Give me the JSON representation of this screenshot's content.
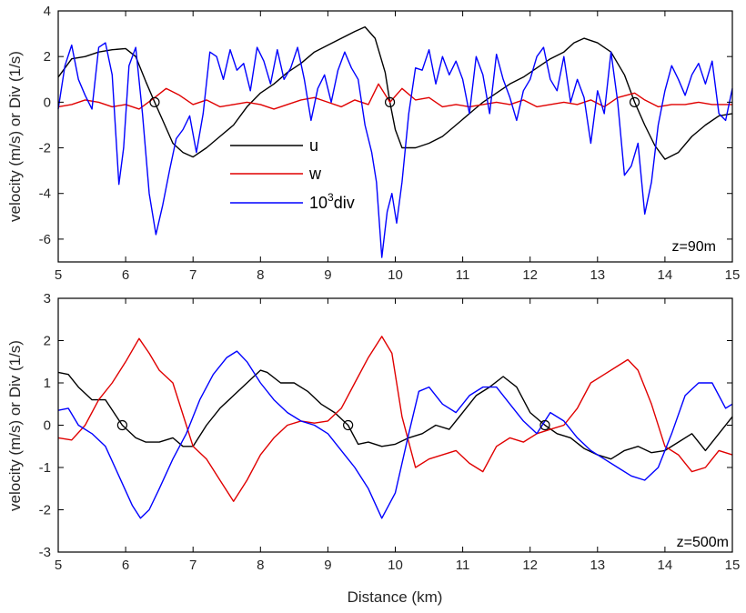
{
  "chart_data": [
    {
      "type": "line",
      "annotation": "z=90m",
      "xlabel": "",
      "ylabel": "velocity (m/s) or Div (1/s)",
      "xlim": [
        5,
        15
      ],
      "ylim": [
        -7,
        4
      ],
      "xticks": [
        5,
        6,
        7,
        8,
        9,
        10,
        11,
        12,
        13,
        14,
        15
      ],
      "yticks": [
        -6,
        -4,
        -2,
        0,
        2,
        4
      ],
      "legend": {
        "placement": "center-left",
        "entries": [
          {
            "label": "u",
            "color": "#000000"
          },
          {
            "label": "w",
            "color": "#e00000"
          },
          {
            "label_base": "10",
            "label_sup": "3",
            "label_rest": "div",
            "color": "#0000ff"
          }
        ]
      },
      "markers": [
        [
          6.43,
          0
        ],
        [
          9.92,
          0
        ],
        [
          13.55,
          0
        ]
      ],
      "series": [
        {
          "color": "#000000",
          "x": [
            5,
            5.2,
            5.4,
            5.6,
            5.8,
            6,
            6.15,
            6.3,
            6.43,
            6.55,
            6.7,
            6.85,
            7,
            7.2,
            7.4,
            7.6,
            7.8,
            8,
            8.2,
            8.4,
            8.6,
            8.8,
            9,
            9.2,
            9.4,
            9.55,
            9.7,
            9.85,
            9.92,
            10,
            10.1,
            10.3,
            10.5,
            10.7,
            10.9,
            11.1,
            11.3,
            11.5,
            11.7,
            11.9,
            12.1,
            12.3,
            12.5,
            12.65,
            12.8,
            13,
            13.2,
            13.4,
            13.55,
            13.7,
            13.85,
            14,
            14.2,
            14.4,
            14.6,
            14.8,
            15
          ],
          "y": [
            1.1,
            1.9,
            2.0,
            2.2,
            2.3,
            2.35,
            2.0,
            0.9,
            0.0,
            -0.8,
            -1.8,
            -2.2,
            -2.4,
            -2.0,
            -1.5,
            -1.0,
            -0.2,
            0.4,
            0.8,
            1.3,
            1.7,
            2.2,
            2.5,
            2.8,
            3.1,
            3.3,
            2.8,
            1.3,
            0.0,
            -1.2,
            -2.0,
            -2.0,
            -1.8,
            -1.5,
            -1.0,
            -0.5,
            0.0,
            0.4,
            0.8,
            1.1,
            1.5,
            1.9,
            2.2,
            2.6,
            2.8,
            2.6,
            2.2,
            1.2,
            0.0,
            -1.0,
            -1.9,
            -2.5,
            -2.2,
            -1.5,
            -1.0,
            -0.6,
            -0.5
          ]
        },
        {
          "color": "#e00000",
          "x": [
            5,
            5.2,
            5.4,
            5.6,
            5.8,
            6,
            6.2,
            6.43,
            6.6,
            6.8,
            7,
            7.2,
            7.4,
            7.6,
            7.8,
            8,
            8.2,
            8.4,
            8.6,
            8.8,
            9,
            9.2,
            9.4,
            9.6,
            9.75,
            9.92,
            10.1,
            10.3,
            10.5,
            10.7,
            10.9,
            11.1,
            11.3,
            11.5,
            11.7,
            11.9,
            12.1,
            12.3,
            12.5,
            12.7,
            12.9,
            13.1,
            13.3,
            13.55,
            13.7,
            13.9,
            14.1,
            14.3,
            14.5,
            14.7,
            14.9,
            15
          ],
          "y": [
            -0.2,
            -0.1,
            0.1,
            0.0,
            -0.2,
            -0.1,
            -0.3,
            0.2,
            0.6,
            0.3,
            -0.1,
            0.1,
            -0.2,
            -0.1,
            0.0,
            -0.1,
            -0.3,
            -0.1,
            0.1,
            0.2,
            0.0,
            -0.2,
            0.1,
            -0.1,
            0.8,
            0.0,
            0.6,
            0.1,
            0.2,
            -0.2,
            -0.1,
            -0.2,
            -0.1,
            0.0,
            -0.1,
            0.1,
            -0.2,
            -0.1,
            0.0,
            -0.1,
            0.1,
            -0.2,
            0.2,
            0.4,
            0.1,
            -0.2,
            -0.1,
            -0.1,
            0.0,
            -0.1,
            -0.1,
            -0.1
          ]
        },
        {
          "color": "#0000ff",
          "x": [
            5,
            5.1,
            5.2,
            5.3,
            5.4,
            5.5,
            5.6,
            5.7,
            5.8,
            5.9,
            5.97,
            6.05,
            6.15,
            6.25,
            6.35,
            6.45,
            6.55,
            6.65,
            6.75,
            6.85,
            6.95,
            7.05,
            7.15,
            7.25,
            7.35,
            7.45,
            7.55,
            7.65,
            7.75,
            7.85,
            7.95,
            8.05,
            8.15,
            8.25,
            8.35,
            8.45,
            8.55,
            8.65,
            8.75,
            8.85,
            8.95,
            9.05,
            9.15,
            9.25,
            9.35,
            9.45,
            9.55,
            9.65,
            9.72,
            9.8,
            9.88,
            9.95,
            10.02,
            10.1,
            10.2,
            10.3,
            10.4,
            10.5,
            10.6,
            10.7,
            10.8,
            10.9,
            11.0,
            11.1,
            11.2,
            11.3,
            11.4,
            11.5,
            11.6,
            11.7,
            11.8,
            11.9,
            12.0,
            12.1,
            12.2,
            12.3,
            12.4,
            12.5,
            12.6,
            12.7,
            12.8,
            12.9,
            13.0,
            13.1,
            13.2,
            13.3,
            13.4,
            13.5,
            13.6,
            13.7,
            13.8,
            13.9,
            14.0,
            14.1,
            14.2,
            14.3,
            14.4,
            14.5,
            14.6,
            14.7,
            14.8,
            14.9,
            15.0
          ],
          "y": [
            -0.3,
            1.6,
            2.5,
            1.0,
            0.3,
            -0.3,
            2.4,
            2.6,
            1.2,
            -3.6,
            -2.0,
            1.6,
            2.4,
            -0.5,
            -4.0,
            -5.8,
            -4.5,
            -3.0,
            -1.6,
            -1.2,
            -0.6,
            -2.2,
            -0.5,
            2.2,
            2.0,
            1.0,
            2.3,
            1.4,
            1.7,
            0.5,
            2.4,
            1.8,
            0.8,
            2.3,
            1.0,
            1.5,
            2.4,
            1.0,
            -0.8,
            0.6,
            1.2,
            0.0,
            1.4,
            2.2,
            1.5,
            1.0,
            -1.0,
            -2.2,
            -3.5,
            -6.8,
            -4.8,
            -4.0,
            -5.3,
            -3.5,
            -0.5,
            1.5,
            1.4,
            2.3,
            0.8,
            2.0,
            1.2,
            1.8,
            1.0,
            -0.5,
            2.0,
            1.2,
            -0.5,
            2.1,
            1.0,
            0.2,
            -0.8,
            0.5,
            1.0,
            2.0,
            2.4,
            1.0,
            0.5,
            2.0,
            0.0,
            1.0,
            0.2,
            -1.8,
            0.5,
            -0.5,
            2.2,
            0.0,
            -3.2,
            -2.8,
            -1.8,
            -4.9,
            -3.5,
            -1.0,
            0.5,
            1.6,
            1.0,
            0.3,
            1.2,
            1.7,
            0.8,
            1.8,
            -0.5,
            -0.8,
            0.6
          ]
        }
      ]
    },
    {
      "type": "line",
      "annotation": "z=500m",
      "xlabel": "Distance (km)",
      "ylabel": "velocity (m/s) or Div (1/s)",
      "xlim": [
        5,
        15
      ],
      "ylim": [
        -3,
        3
      ],
      "xticks": [
        5,
        6,
        7,
        8,
        9,
        10,
        11,
        12,
        13,
        14,
        15
      ],
      "yticks": [
        -3,
        -2,
        -1,
        0,
        1,
        2,
        3
      ],
      "markers": [
        [
          5.95,
          0
        ],
        [
          9.3,
          0
        ],
        [
          12.22,
          0
        ]
      ],
      "series": [
        {
          "color": "#000000",
          "x": [
            5,
            5.15,
            5.3,
            5.5,
            5.7,
            5.95,
            6.15,
            6.3,
            6.5,
            6.7,
            6.85,
            7.0,
            7.2,
            7.4,
            7.6,
            7.8,
            8.0,
            8.1,
            8.3,
            8.5,
            8.7,
            8.9,
            9.1,
            9.3,
            9.45,
            9.6,
            9.8,
            10.0,
            10.2,
            10.4,
            10.6,
            10.8,
            11.0,
            11.2,
            11.4,
            11.6,
            11.8,
            12.0,
            12.22,
            12.4,
            12.6,
            12.8,
            13.0,
            13.2,
            13.4,
            13.6,
            13.8,
            14.0,
            14.2,
            14.4,
            14.6,
            14.8,
            15.0
          ],
          "y": [
            1.25,
            1.2,
            0.9,
            0.6,
            0.6,
            0.0,
            -0.3,
            -0.4,
            -0.4,
            -0.3,
            -0.5,
            -0.5,
            0.0,
            0.4,
            0.7,
            1.0,
            1.3,
            1.25,
            1.0,
            1.0,
            0.8,
            0.5,
            0.3,
            0.0,
            -0.45,
            -0.4,
            -0.5,
            -0.45,
            -0.3,
            -0.2,
            0.0,
            -0.1,
            0.3,
            0.7,
            0.9,
            1.15,
            0.9,
            0.3,
            0.0,
            -0.2,
            -0.3,
            -0.55,
            -0.7,
            -0.8,
            -0.6,
            -0.5,
            -0.65,
            -0.6,
            -0.4,
            -0.2,
            -0.6,
            -0.2,
            0.2
          ]
        },
        {
          "color": "#e00000",
          "x": [
            5,
            5.2,
            5.4,
            5.6,
            5.8,
            6.0,
            6.2,
            6.35,
            6.5,
            6.7,
            6.9,
            7.0,
            7.2,
            7.4,
            7.6,
            7.8,
            8.0,
            8.2,
            8.4,
            8.6,
            8.8,
            9.0,
            9.2,
            9.4,
            9.6,
            9.8,
            9.95,
            10.1,
            10.3,
            10.5,
            10.7,
            10.9,
            11.1,
            11.3,
            11.5,
            11.7,
            11.9,
            12.1,
            12.3,
            12.5,
            12.7,
            12.9,
            13.1,
            13.3,
            13.45,
            13.6,
            13.8,
            14.0,
            14.2,
            14.4,
            14.6,
            14.8,
            15.0
          ],
          "y": [
            -0.3,
            -0.35,
            0.0,
            0.6,
            1.0,
            1.5,
            2.05,
            1.7,
            1.3,
            1.0,
            0.0,
            -0.5,
            -0.8,
            -1.3,
            -1.8,
            -1.3,
            -0.7,
            -0.3,
            0.0,
            0.1,
            0.05,
            0.1,
            0.4,
            1.0,
            1.6,
            2.1,
            1.7,
            0.2,
            -1.0,
            -0.8,
            -0.7,
            -0.6,
            -0.9,
            -1.1,
            -0.5,
            -0.3,
            -0.4,
            -0.2,
            -0.1,
            0.0,
            0.4,
            1.0,
            1.2,
            1.4,
            1.55,
            1.3,
            0.5,
            -0.5,
            -0.7,
            -1.1,
            -1.0,
            -0.6,
            -0.7
          ]
        },
        {
          "color": "#0000ff",
          "x": [
            5,
            5.15,
            5.3,
            5.5,
            5.7,
            5.9,
            6.1,
            6.22,
            6.35,
            6.5,
            6.7,
            6.9,
            7.1,
            7.3,
            7.5,
            7.65,
            7.8,
            8.0,
            8.2,
            8.4,
            8.6,
            8.8,
            9.0,
            9.2,
            9.4,
            9.6,
            9.8,
            10.0,
            10.2,
            10.35,
            10.5,
            10.7,
            10.9,
            11.1,
            11.3,
            11.5,
            11.7,
            11.9,
            12.1,
            12.3,
            12.5,
            12.7,
            12.9,
            13.1,
            13.3,
            13.5,
            13.7,
            13.9,
            14.1,
            14.3,
            14.5,
            14.7,
            14.9,
            15.0
          ],
          "y": [
            0.35,
            0.4,
            0.0,
            -0.2,
            -0.5,
            -1.2,
            -1.9,
            -2.2,
            -2.0,
            -1.5,
            -0.8,
            -0.2,
            0.6,
            1.2,
            1.6,
            1.75,
            1.5,
            1.0,
            0.6,
            0.3,
            0.1,
            0.0,
            -0.2,
            -0.6,
            -1.0,
            -1.5,
            -2.2,
            -1.6,
            -0.2,
            0.8,
            0.9,
            0.5,
            0.3,
            0.7,
            0.9,
            0.9,
            0.5,
            0.1,
            -0.2,
            0.3,
            0.1,
            -0.3,
            -0.6,
            -0.8,
            -1.0,
            -1.2,
            -1.3,
            -1.0,
            -0.2,
            0.7,
            1.0,
            1.0,
            0.4,
            0.5
          ]
        }
      ]
    }
  ]
}
